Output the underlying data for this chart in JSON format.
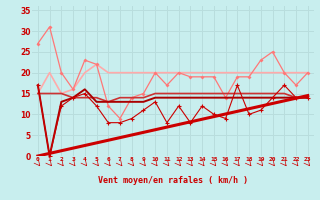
{
  "xlabel": "Vent moyen/en rafales ( km/h )",
  "bg_color": "#c8eeee",
  "grid_color": "#b8dddd",
  "xlim": [
    -0.5,
    23.5
  ],
  "ylim": [
    0,
    36
  ],
  "yticks": [
    0,
    5,
    10,
    15,
    20,
    25,
    30,
    35
  ],
  "xticks": [
    0,
    1,
    2,
    3,
    4,
    5,
    6,
    7,
    8,
    9,
    10,
    11,
    12,
    13,
    14,
    15,
    16,
    17,
    18,
    19,
    20,
    21,
    22,
    23
  ],
  "line_diag": {
    "x": [
      0,
      23
    ],
    "y": [
      0,
      14.5
    ],
    "color": "#cc0000",
    "lw": 2.2
  },
  "line_inst": {
    "x": [
      0,
      1,
      2,
      3,
      4,
      5,
      6,
      7,
      8,
      9,
      10,
      11,
      12,
      13,
      14,
      15,
      16,
      17,
      18,
      19,
      20,
      21,
      22,
      23
    ],
    "y": [
      17,
      0,
      12,
      14,
      15,
      12,
      8,
      8,
      9,
      11,
      13,
      8,
      12,
      8,
      12,
      10,
      9,
      17,
      10,
      11,
      14,
      17,
      14,
      14
    ],
    "color": "#cc0000",
    "lw": 0.8,
    "marker": "+"
  },
  "line_mean": {
    "x": [
      0,
      1,
      2,
      3,
      4,
      5,
      6,
      7,
      8,
      9,
      10,
      11,
      12,
      13,
      14,
      15,
      16,
      17,
      18,
      19,
      20,
      21,
      22,
      23
    ],
    "y": [
      17,
      0,
      13,
      14,
      16,
      13,
      13,
      13,
      13,
      13,
      14,
      14,
      14,
      14,
      14,
      14,
      14,
      14,
      14,
      14,
      14,
      14,
      14,
      14
    ],
    "color": "#aa0000",
    "lw": 1.4
  },
  "line_trend1": {
    "x": [
      0,
      1,
      2,
      3,
      4,
      5,
      6,
      7,
      8,
      9,
      10,
      11,
      12,
      13,
      14,
      15,
      16,
      17,
      18,
      19,
      20,
      21,
      22,
      23
    ],
    "y": [
      15,
      15,
      15,
      14,
      14,
      14,
      13,
      14,
      14,
      14,
      15,
      15,
      15,
      15,
      15,
      15,
      15,
      15,
      15,
      15,
      15,
      15,
      14,
      14
    ],
    "color": "#cc3333",
    "lw": 1.2
  },
  "line_gust": {
    "x": [
      0,
      1,
      2,
      3,
      4,
      5,
      6,
      7,
      8,
      9,
      10,
      11,
      12,
      13,
      14,
      15,
      16,
      17,
      18,
      19,
      20,
      21,
      22,
      23
    ],
    "y": [
      27,
      31,
      20,
      16,
      23,
      22,
      12,
      9,
      14,
      15,
      20,
      17,
      20,
      19,
      19,
      19,
      14,
      19,
      19,
      23,
      25,
      20,
      17,
      20
    ],
    "color": "#ff7777",
    "lw": 0.9,
    "marker": "D"
  },
  "line_gust_trend": {
    "x": [
      0,
      1,
      2,
      3,
      4,
      5,
      6,
      7,
      8,
      9,
      10,
      11,
      12,
      13,
      14,
      15,
      16,
      17,
      18,
      19,
      20,
      21,
      22,
      23
    ],
    "y": [
      15,
      20,
      15,
      16,
      20,
      22,
      20,
      20,
      20,
      20,
      20,
      20,
      20,
      20,
      20,
      20,
      20,
      20,
      20,
      20,
      20,
      20,
      20,
      20
    ],
    "color": "#ffaaaa",
    "lw": 1.2
  }
}
